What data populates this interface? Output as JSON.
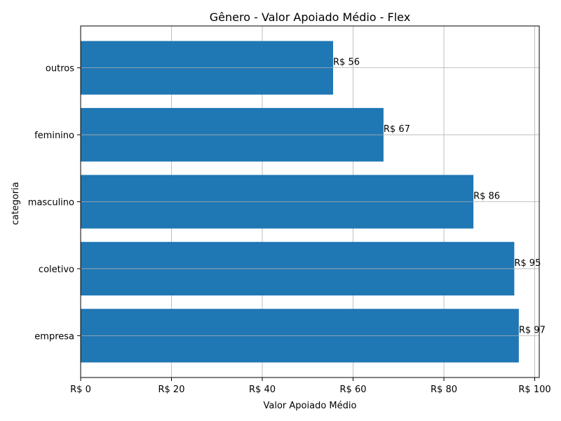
{
  "chart_data": {
    "type": "bar",
    "orientation": "horizontal",
    "title": "Gênero - Valor Apoiado Médio - Flex",
    "xlabel": "Valor Apoiado Médio",
    "ylabel": "categoria",
    "categories": [
      "empresa",
      "coletivo",
      "masculino",
      "feminino",
      "outros"
    ],
    "values": [
      96.5,
      95.5,
      86.5,
      66.7,
      55.6
    ],
    "data_labels": [
      "R$ 97",
      "R$ 95",
      "R$ 86",
      "R$ 67",
      "R$ 56"
    ],
    "xlim": [
      0,
      101
    ],
    "x_ticks": [
      0,
      20,
      40,
      60,
      80,
      100
    ],
    "x_tick_labels": [
      "R$ 0",
      "R$ 20",
      "R$ 40",
      "R$ 60",
      "R$ 80",
      "R$ 100"
    ],
    "grid": true,
    "bar_color": "#1f77b4"
  }
}
